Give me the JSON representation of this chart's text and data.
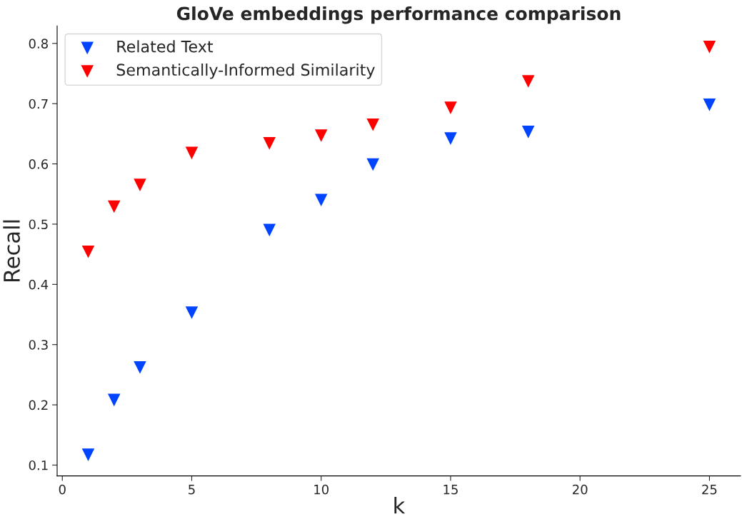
{
  "chart_data": {
    "type": "scatter",
    "title": "GloVe embeddings performance comparison",
    "xlabel": "k",
    "ylabel": "Recall",
    "x": [
      1,
      2,
      3,
      5,
      8,
      10,
      12,
      15,
      18,
      25
    ],
    "series": [
      {
        "name": "Related Text",
        "color": "#0044ff",
        "values": [
          0.117,
          0.208,
          0.262,
          0.353,
          0.49,
          0.54,
          0.599,
          0.642,
          0.653,
          0.698
        ]
      },
      {
        "name": "Semantically-Informed Similarity",
        "color": "#ff0000",
        "values": [
          0.454,
          0.529,
          0.565,
          0.618,
          0.634,
          0.647,
          0.665,
          0.693,
          0.737,
          0.794
        ]
      }
    ],
    "xlim": [
      -0.2,
      26.2
    ],
    "ylim": [
      0.082,
      0.829
    ],
    "xticks": [
      0,
      5,
      10,
      15,
      20,
      25
    ],
    "yticks": [
      0.1,
      0.2,
      0.3,
      0.4,
      0.5,
      0.6,
      0.7,
      0.8
    ],
    "marker": "triangle",
    "legend": "top left",
    "grid": false
  }
}
